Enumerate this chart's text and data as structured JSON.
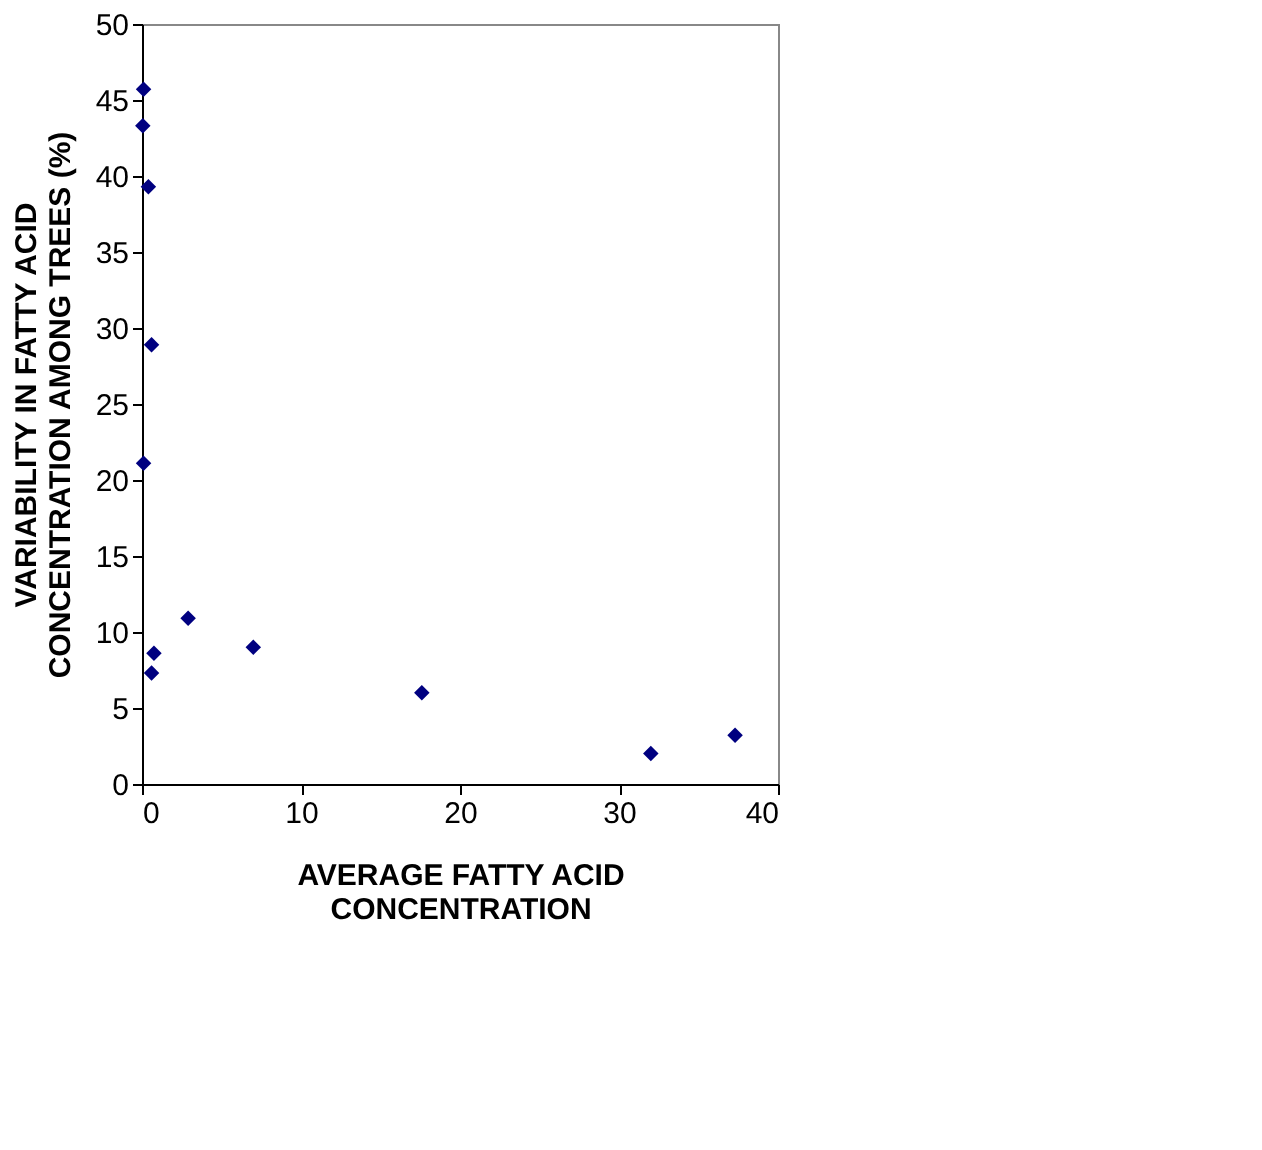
{
  "chart_data": {
    "type": "scatter",
    "xlabel": "AVERAGE FATTY ACID CONCENTRATION",
    "ylabel": "VARIABILITY IN FATTY ACID CONCENTRATION AMONG TREES (%)",
    "x": [
      0.1,
      0.05,
      0.4,
      0.6,
      0.1,
      2.9,
      0.75,
      0.6,
      7.0,
      17.6,
      32.0,
      37.3
    ],
    "values": [
      45.7,
      43.3,
      39.3,
      28.9,
      21.1,
      10.9,
      8.6,
      7.3,
      9.0,
      6.0,
      2.0,
      3.2
    ],
    "color": "#000080",
    "marker": "diamond",
    "xlim": [
      0,
      40
    ],
    "xticks": [
      0,
      10,
      20,
      30,
      40
    ],
    "ylim": [
      0,
      50
    ],
    "yticks": [
      0,
      5,
      10,
      15,
      20,
      25,
      30,
      35,
      40,
      45,
      50
    ],
    "grid": false
  }
}
